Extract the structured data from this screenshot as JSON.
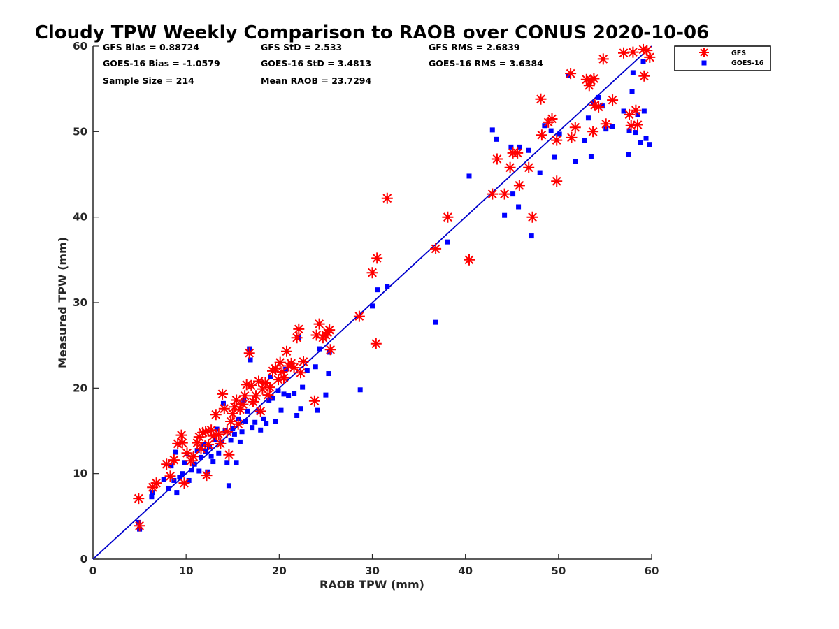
{
  "chart_data": {
    "type": "scatter",
    "title": "Cloudy TPW Weekly Comparison to RAOB over CONUS 2020-10-06",
    "xlabel": "RAOB TPW (mm)",
    "ylabel": "Measured TPW (mm)",
    "xlim": [
      0,
      60
    ],
    "ylim": [
      0,
      60
    ],
    "xticks": [
      "0",
      "10",
      "20",
      "30",
      "40",
      "50",
      "60"
    ],
    "yticks": [
      "0",
      "10",
      "20",
      "30",
      "40",
      "50",
      "60"
    ],
    "grid": false,
    "legend_position": "top-right outside",
    "stats": {
      "gfs_bias": "GFS Bias = 0.88724",
      "gfs_std": "GFS StD = 2.533",
      "gfs_rms": "GFS RMS = 2.6839",
      "goes_bias": "GOES-16 Bias = -1.0579",
      "goes_std": "GOES-16 StD = 3.4813",
      "goes_rms": "GOES-16 RMS = 3.6384",
      "sample_size": "Sample Size = 214",
      "mean_raob": "Mean RAOB = 23.7294"
    },
    "reference_line": {
      "from": [
        0,
        0
      ],
      "to": [
        60,
        60
      ],
      "color": "#0000cc"
    },
    "series": [
      {
        "name": "GFS",
        "marker": "asterisk",
        "color": "#ff0000",
        "points": [
          [
            4.9,
            7.1
          ],
          [
            5.0,
            3.9
          ],
          [
            6.4,
            8.4
          ],
          [
            6.8,
            8.9
          ],
          [
            7.9,
            11.1
          ],
          [
            8.3,
            9.7
          ],
          [
            8.7,
            11.6
          ],
          [
            9.1,
            13.5
          ],
          [
            9.5,
            14.5
          ],
          [
            9.6,
            13.6
          ],
          [
            9.8,
            8.9
          ],
          [
            10.1,
            12.4
          ],
          [
            10.5,
            11.5
          ],
          [
            10.8,
            12.0
          ],
          [
            11.2,
            13.6
          ],
          [
            11.4,
            14.3
          ],
          [
            11.6,
            12.9
          ],
          [
            11.8,
            14.8
          ],
          [
            12.1,
            14.9
          ],
          [
            12.2,
            9.8
          ],
          [
            12.4,
            13.4
          ],
          [
            12.7,
            15.1
          ],
          [
            12.9,
            14.4
          ],
          [
            13.2,
            16.9
          ],
          [
            13.5,
            14.6
          ],
          [
            13.7,
            13.5
          ],
          [
            13.9,
            19.3
          ],
          [
            14.1,
            17.6
          ],
          [
            14.4,
            14.9
          ],
          [
            14.6,
            12.2
          ],
          [
            14.8,
            16.1
          ],
          [
            15.0,
            17.0
          ],
          [
            15.2,
            17.8
          ],
          [
            15.4,
            18.6
          ],
          [
            15.6,
            15.8
          ],
          [
            15.8,
            17.5
          ],
          [
            16.1,
            18.1
          ],
          [
            16.3,
            19.1
          ],
          [
            16.5,
            20.4
          ],
          [
            16.8,
            24.1
          ],
          [
            17.0,
            20.3
          ],
          [
            17.2,
            18.4
          ],
          [
            17.5,
            19.1
          ],
          [
            17.8,
            20.8
          ],
          [
            18.0,
            17.3
          ],
          [
            18.2,
            19.9
          ],
          [
            18.5,
            20.6
          ],
          [
            18.8,
            19.2
          ],
          [
            19.0,
            20.1
          ],
          [
            19.3,
            22.0
          ],
          [
            19.6,
            22.3
          ],
          [
            19.9,
            21.0
          ],
          [
            20.1,
            23.0
          ],
          [
            20.3,
            21.9
          ],
          [
            20.5,
            21.2
          ],
          [
            20.8,
            24.3
          ],
          [
            21.0,
            22.6
          ],
          [
            21.3,
            22.9
          ],
          [
            21.6,
            22.4
          ],
          [
            21.9,
            25.9
          ],
          [
            22.1,
            26.9
          ],
          [
            22.3,
            21.8
          ],
          [
            22.6,
            23.1
          ],
          [
            23.8,
            18.5
          ],
          [
            24.0,
            26.2
          ],
          [
            24.3,
            27.5
          ],
          [
            24.7,
            25.9
          ],
          [
            25.0,
            26.2
          ],
          [
            25.2,
            26.5
          ],
          [
            25.4,
            26.8
          ],
          [
            25.5,
            24.5
          ],
          [
            28.6,
            28.4
          ],
          [
            30.0,
            33.5
          ],
          [
            30.4,
            25.2
          ],
          [
            30.5,
            35.2
          ],
          [
            31.6,
            42.2
          ],
          [
            36.8,
            36.3
          ],
          [
            38.1,
            40.0
          ],
          [
            40.4,
            35.0
          ],
          [
            42.9,
            42.7
          ],
          [
            43.4,
            46.8
          ],
          [
            44.2,
            42.7
          ],
          [
            44.8,
            45.8
          ],
          [
            45.1,
            47.5
          ],
          [
            45.6,
            47.5
          ],
          [
            45.8,
            43.7
          ],
          [
            46.8,
            45.8
          ],
          [
            47.2,
            40.0
          ],
          [
            48.1,
            53.8
          ],
          [
            48.2,
            49.6
          ],
          [
            48.9,
            51.1
          ],
          [
            49.3,
            51.5
          ],
          [
            49.8,
            44.2
          ],
          [
            49.8,
            49.0
          ],
          [
            51.3,
            56.8
          ],
          [
            51.4,
            49.3
          ],
          [
            51.8,
            50.5
          ],
          [
            53.0,
            56.1
          ],
          [
            53.3,
            55.4
          ],
          [
            53.5,
            56.0
          ],
          [
            53.7,
            50.0
          ],
          [
            53.8,
            56.2
          ],
          [
            53.9,
            53.1
          ],
          [
            54.3,
            52.9
          ],
          [
            54.8,
            58.5
          ],
          [
            55.1,
            50.9
          ],
          [
            55.8,
            53.7
          ],
          [
            57.0,
            59.2
          ],
          [
            57.6,
            52.0
          ],
          [
            57.8,
            50.7
          ],
          [
            58.0,
            59.3
          ],
          [
            58.3,
            52.5
          ],
          [
            58.5,
            50.8
          ],
          [
            59.1,
            59.6
          ],
          [
            59.2,
            56.5
          ],
          [
            59.5,
            59.5
          ],
          [
            59.8,
            58.7
          ]
        ]
      },
      {
        "name": "GOES-16",
        "marker": "square",
        "color": "#0000ff",
        "points": [
          [
            4.9,
            4.3
          ],
          [
            5.0,
            3.5
          ],
          [
            6.3,
            7.3
          ],
          [
            6.4,
            7.8
          ],
          [
            7.6,
            9.3
          ],
          [
            8.1,
            8.3
          ],
          [
            8.4,
            10.9
          ],
          [
            8.7,
            9.2
          ],
          [
            8.9,
            12.5
          ],
          [
            9.0,
            7.8
          ],
          [
            9.3,
            9.6
          ],
          [
            9.6,
            10.0
          ],
          [
            9.8,
            11.3
          ],
          [
            10.1,
            12.3
          ],
          [
            10.3,
            9.2
          ],
          [
            10.6,
            10.4
          ],
          [
            10.9,
            11.1
          ],
          [
            11.2,
            12.7
          ],
          [
            11.4,
            10.3
          ],
          [
            11.6,
            11.9
          ],
          [
            11.9,
            13.4
          ],
          [
            12.1,
            12.6
          ],
          [
            12.3,
            10.2
          ],
          [
            12.5,
            13.1
          ],
          [
            12.7,
            12.0
          ],
          [
            12.9,
            11.4
          ],
          [
            13.1,
            14.0
          ],
          [
            13.3,
            15.2
          ],
          [
            13.5,
            12.4
          ],
          [
            13.8,
            13.7
          ],
          [
            14.0,
            18.2
          ],
          [
            14.2,
            15.0
          ],
          [
            14.4,
            11.3
          ],
          [
            14.6,
            8.6
          ],
          [
            14.8,
            13.9
          ],
          [
            15.0,
            15.3
          ],
          [
            15.2,
            14.6
          ],
          [
            15.4,
            11.3
          ],
          [
            15.6,
            16.4
          ],
          [
            15.8,
            13.7
          ],
          [
            16.0,
            14.9
          ],
          [
            16.2,
            18.6
          ],
          [
            16.4,
            16.1
          ],
          [
            16.6,
            17.3
          ],
          [
            16.8,
            24.6
          ],
          [
            16.9,
            23.3
          ],
          [
            17.1,
            15.4
          ],
          [
            17.4,
            16.0
          ],
          [
            17.8,
            17.3
          ],
          [
            18.0,
            15.1
          ],
          [
            18.3,
            16.4
          ],
          [
            18.6,
            15.9
          ],
          [
            18.9,
            18.6
          ],
          [
            19.1,
            21.3
          ],
          [
            19.3,
            18.8
          ],
          [
            19.6,
            16.1
          ],
          [
            19.9,
            19.7
          ],
          [
            20.2,
            17.4
          ],
          [
            20.5,
            19.3
          ],
          [
            20.7,
            22.2
          ],
          [
            21.0,
            19.1
          ],
          [
            21.3,
            22.7
          ],
          [
            21.6,
            19.4
          ],
          [
            21.9,
            16.8
          ],
          [
            22.1,
            25.9
          ],
          [
            22.3,
            17.6
          ],
          [
            22.5,
            20.1
          ],
          [
            23.0,
            22.1
          ],
          [
            23.9,
            22.5
          ],
          [
            24.1,
            17.4
          ],
          [
            24.3,
            24.6
          ],
          [
            25.0,
            19.2
          ],
          [
            25.3,
            21.7
          ],
          [
            25.4,
            24.2
          ],
          [
            28.7,
            19.8
          ],
          [
            30.0,
            29.6
          ],
          [
            30.6,
            31.5
          ],
          [
            31.6,
            31.9
          ],
          [
            36.8,
            27.7
          ],
          [
            38.1,
            37.1
          ],
          [
            40.4,
            44.8
          ],
          [
            42.9,
            50.2
          ],
          [
            43.3,
            49.1
          ],
          [
            44.2,
            40.2
          ],
          [
            44.9,
            48.2
          ],
          [
            45.1,
            42.7
          ],
          [
            45.7,
            41.2
          ],
          [
            45.8,
            48.2
          ],
          [
            46.8,
            47.8
          ],
          [
            47.1,
            37.8
          ],
          [
            48.0,
            45.2
          ],
          [
            48.5,
            50.7
          ],
          [
            49.2,
            50.1
          ],
          [
            49.6,
            47.0
          ],
          [
            50.1,
            49.7
          ],
          [
            51.1,
            56.6
          ],
          [
            51.8,
            46.5
          ],
          [
            52.8,
            49.0
          ],
          [
            53.2,
            51.6
          ],
          [
            53.5,
            47.1
          ],
          [
            53.8,
            53.3
          ],
          [
            54.3,
            54.0
          ],
          [
            54.7,
            53.0
          ],
          [
            55.1,
            50.3
          ],
          [
            55.8,
            50.6
          ],
          [
            57.0,
            52.4
          ],
          [
            57.5,
            47.3
          ],
          [
            57.6,
            50.1
          ],
          [
            57.9,
            54.7
          ],
          [
            58.0,
            56.9
          ],
          [
            58.3,
            49.9
          ],
          [
            58.5,
            52.0
          ],
          [
            58.8,
            48.7
          ],
          [
            59.1,
            58.2
          ],
          [
            59.2,
            52.4
          ],
          [
            59.4,
            49.2
          ],
          [
            59.8,
            48.5
          ]
        ]
      }
    ]
  }
}
